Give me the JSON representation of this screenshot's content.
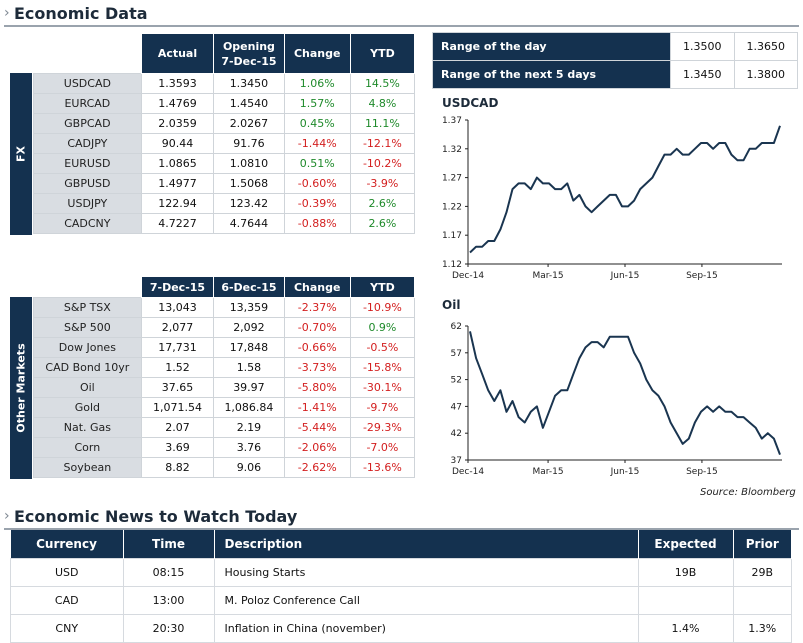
{
  "sections": {
    "economic_data": "Economic Data",
    "news": "Economic News to Watch Today"
  },
  "fx": {
    "side_label": "FX",
    "headers": [
      "Actual",
      "Opening\n7-Dec-15",
      "Change",
      "YTD"
    ],
    "rows": [
      {
        "name": "USDCAD",
        "actual": "1.3593",
        "opening": "1.3450",
        "change": "1.06%",
        "ytd": "14.5%",
        "cs": "pos",
        "ys": "pos"
      },
      {
        "name": "EURCAD",
        "actual": "1.4769",
        "opening": "1.4540",
        "change": "1.57%",
        "ytd": "4.8%",
        "cs": "pos",
        "ys": "pos"
      },
      {
        "name": "GBPCAD",
        "actual": "2.0359",
        "opening": "2.0267",
        "change": "0.45%",
        "ytd": "11.1%",
        "cs": "pos",
        "ys": "pos"
      },
      {
        "name": "CADJPY",
        "actual": "90.44",
        "opening": "91.76",
        "change": "-1.44%",
        "ytd": "-12.1%",
        "cs": "neg",
        "ys": "neg"
      },
      {
        "name": "EURUSD",
        "actual": "1.0865",
        "opening": "1.0810",
        "change": "0.51%",
        "ytd": "-10.2%",
        "cs": "pos",
        "ys": "neg"
      },
      {
        "name": "GBPUSD",
        "actual": "1.4977",
        "opening": "1.5068",
        "change": "-0.60%",
        "ytd": "-3.9%",
        "cs": "neg",
        "ys": "neg"
      },
      {
        "name": "USDJPY",
        "actual": "122.94",
        "opening": "123.42",
        "change": "-0.39%",
        "ytd": "2.6%",
        "cs": "neg",
        "ys": "pos"
      },
      {
        "name": "CADCNY",
        "actual": "4.7227",
        "opening": "4.7644",
        "change": "-0.88%",
        "ytd": "2.6%",
        "cs": "neg",
        "ys": "pos"
      }
    ]
  },
  "markets": {
    "side_label": "Other Markets",
    "headers": [
      "7-Dec-15",
      "6-Dec-15",
      "Change",
      "YTD"
    ],
    "rows": [
      {
        "name": "S&P TSX",
        "actual": "13,043",
        "opening": "13,359",
        "change": "-2.37%",
        "ytd": "-10.9%",
        "cs": "neg",
        "ys": "neg"
      },
      {
        "name": "S&P 500",
        "actual": "2,077",
        "opening": "2,092",
        "change": "-0.70%",
        "ytd": "0.9%",
        "cs": "neg",
        "ys": "pos"
      },
      {
        "name": "Dow Jones",
        "actual": "17,731",
        "opening": "17,848",
        "change": "-0.66%",
        "ytd": "-0.5%",
        "cs": "neg",
        "ys": "neg"
      },
      {
        "name": "CAD Bond 10yr",
        "actual": "1.52",
        "opening": "1.58",
        "change": "-3.73%",
        "ytd": "-15.8%",
        "cs": "neg",
        "ys": "neg"
      },
      {
        "name": "Oil",
        "actual": "37.65",
        "opening": "39.97",
        "change": "-5.80%",
        "ytd": "-30.1%",
        "cs": "neg",
        "ys": "neg"
      },
      {
        "name": "Gold",
        "actual": "1,071.54",
        "opening": "1,086.84",
        "change": "-1.41%",
        "ytd": "-9.7%",
        "cs": "neg",
        "ys": "neg"
      },
      {
        "name": "Nat. Gas",
        "actual": "2.07",
        "opening": "2.19",
        "change": "-5.44%",
        "ytd": "-29.3%",
        "cs": "neg",
        "ys": "neg"
      },
      {
        "name": "Corn",
        "actual": "3.69",
        "opening": "3.76",
        "change": "-2.06%",
        "ytd": "-7.0%",
        "cs": "neg",
        "ys": "neg"
      },
      {
        "name": "Soybean",
        "actual": "8.82",
        "opening": "9.06",
        "change": "-2.62%",
        "ytd": "-13.6%",
        "cs": "neg",
        "ys": "neg"
      }
    ]
  },
  "ranges": [
    {
      "label": "Range of the day",
      "low": "1.3500",
      "high": "1.3650"
    },
    {
      "label": "Range of the next 5 days",
      "low": "1.3450",
      "high": "1.3800"
    }
  ],
  "chart_data": [
    {
      "type": "line",
      "title": "USDCAD",
      "x_ticks": [
        "Dec-14",
        "Mar-15",
        "Jun-15",
        "Sep-15"
      ],
      "y_ticks": [
        "1.37",
        "1.32",
        "1.27",
        "1.22",
        "1.17",
        "1.12"
      ],
      "ylim": [
        1.12,
        1.37
      ],
      "values": [
        1.14,
        1.15,
        1.15,
        1.16,
        1.16,
        1.18,
        1.21,
        1.25,
        1.26,
        1.26,
        1.25,
        1.27,
        1.26,
        1.26,
        1.25,
        1.25,
        1.26,
        1.23,
        1.24,
        1.22,
        1.21,
        1.22,
        1.23,
        1.24,
        1.24,
        1.22,
        1.22,
        1.23,
        1.25,
        1.26,
        1.27,
        1.29,
        1.31,
        1.31,
        1.32,
        1.31,
        1.31,
        1.32,
        1.33,
        1.33,
        1.32,
        1.33,
        1.33,
        1.31,
        1.3,
        1.3,
        1.32,
        1.32,
        1.33,
        1.33,
        1.33,
        1.36
      ]
    },
    {
      "type": "line",
      "title": "Oil",
      "x_ticks": [
        "Dec-14",
        "Mar-15",
        "Jun-15",
        "Sep-15"
      ],
      "y_ticks": [
        "62",
        "57",
        "52",
        "47",
        "42",
        "37"
      ],
      "ylim": [
        37,
        62
      ],
      "values": [
        61,
        56,
        53,
        50,
        48,
        50,
        46,
        48,
        45,
        44,
        46,
        47,
        43,
        46,
        49,
        50,
        50,
        53,
        56,
        58,
        59,
        59,
        58,
        60,
        60,
        60,
        60,
        57,
        55,
        52,
        50,
        49,
        47,
        44,
        42,
        40,
        41,
        44,
        46,
        47,
        46,
        47,
        46,
        46,
        45,
        45,
        44,
        43,
        41,
        42,
        41,
        38
      ]
    }
  ],
  "source": "Source: Bloomberg",
  "news": {
    "headers": [
      "Currency",
      "Time",
      "Description",
      "Expected",
      "Prior"
    ],
    "rows": [
      {
        "currency": "USD",
        "time": "08:15",
        "description": "Housing Starts",
        "expected": "19B",
        "prior": "29B"
      },
      {
        "currency": "CAD",
        "time": "13:00",
        "description": "M. Poloz Conference Call",
        "expected": "",
        "prior": ""
      },
      {
        "currency": "CNY",
        "time": "20:30",
        "description": "Inflation in China (november)",
        "expected": "1.4%",
        "prior": "1.3%"
      }
    ]
  },
  "colors": {
    "navy": "#14314f",
    "positive": "#1f8a2b",
    "negative": "#d31f1f",
    "line": "#1a3550"
  }
}
